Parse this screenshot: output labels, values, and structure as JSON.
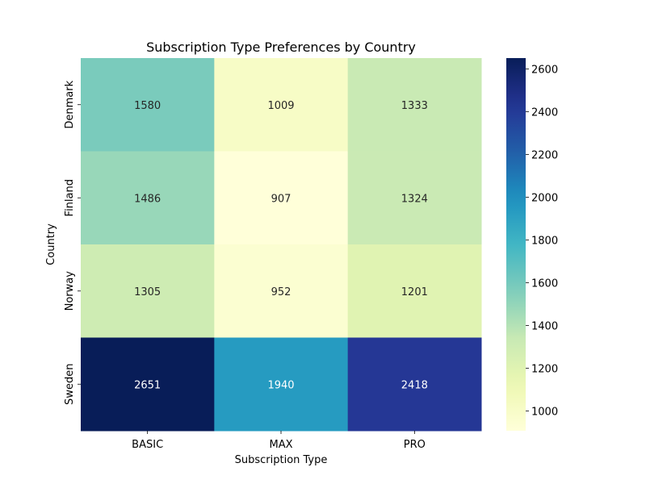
{
  "chart_data": {
    "type": "heatmap",
    "title": "Subscription Type Preferences by Country",
    "xlabel": "Subscription Type",
    "ylabel": "Country",
    "x_categories": [
      "BASIC",
      "MAX",
      "PRO"
    ],
    "y_categories": [
      "Denmark",
      "Finland",
      "Norway",
      "Sweden"
    ],
    "values": [
      [
        1580,
        1009,
        1333
      ],
      [
        1486,
        907,
        1324
      ],
      [
        1305,
        952,
        1201
      ],
      [
        2651,
        1940,
        2418
      ]
    ],
    "color_scale": {
      "name": "YlGnBu",
      "min": 907,
      "max": 2651
    },
    "colorbar_ticks": [
      1000,
      1200,
      1400,
      1600,
      1800,
      2000,
      2200,
      2400,
      2600
    ],
    "colorbar_tick_labels": [
      "1000",
      "1200",
      "1400",
      "1600",
      "1800",
      "2000",
      "2200",
      "2400",
      "2600"
    ],
    "annotations": true,
    "legend": "colorbar-right"
  }
}
